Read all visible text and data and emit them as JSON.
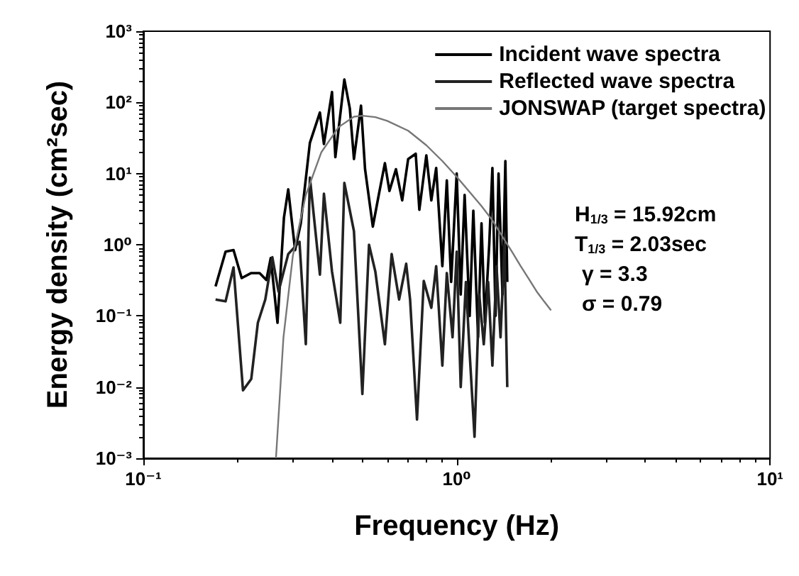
{
  "chart_data": {
    "type": "line",
    "xlabel": "Frequency (Hz)",
    "ylabel": "Energy density (cm²sec)",
    "log": "xy",
    "xlim": [
      0.1,
      10
    ],
    "ylim": [
      0.001,
      1000
    ],
    "xticks": [
      {
        "value": 0.1,
        "label": "10⁻¹"
      },
      {
        "value": 1,
        "label": "10⁰"
      },
      {
        "value": 10,
        "label": "10¹"
      }
    ],
    "yticks": [
      {
        "value": 0.001,
        "label": "10⁻³"
      },
      {
        "value": 0.01,
        "label": "10⁻²"
      },
      {
        "value": 0.1,
        "label": "10⁻¹"
      },
      {
        "value": 1,
        "label": "10⁰"
      },
      {
        "value": 10,
        "label": "10¹"
      },
      {
        "value": 100,
        "label": "10²"
      },
      {
        "value": 1000,
        "label": "10³"
      }
    ],
    "grid": false,
    "legend": "top right",
    "marker": "none",
    "line_style": "solid",
    "annotations": [
      "H$_{1/3}$ = 15.92cm",
      "T$_{1/3}$ = 2.03sec",
      "γ = 3.3",
      "σ = 0.79"
    ],
    "series": [
      {
        "name": "Incident wave spectra",
        "color": "#000000",
        "x": [
          0.17,
          0.183,
          0.194,
          0.206,
          0.221,
          0.235,
          0.247,
          0.255,
          0.268,
          0.281,
          0.29,
          0.305,
          0.318,
          0.34,
          0.366,
          0.377,
          0.4,
          0.41,
          0.438,
          0.456,
          0.47,
          0.495,
          0.51,
          0.54,
          0.563,
          0.59,
          0.61,
          0.64,
          0.67,
          0.7,
          0.74,
          0.76,
          0.8,
          0.83,
          0.86,
          0.9,
          0.93,
          0.96,
          1.0,
          1.03,
          1.06,
          1.1,
          1.13,
          1.17,
          1.2,
          1.23,
          1.27,
          1.3,
          1.33,
          1.36,
          1.4,
          1.43,
          1.45
        ],
        "values": [
          0.26,
          0.8,
          0.84,
          0.34,
          0.4,
          0.4,
          0.32,
          0.65,
          0.08,
          2.4,
          6,
          0.84,
          2,
          27,
          72,
          26,
          140,
          17,
          210,
          82,
          16,
          90,
          11.5,
          1.8,
          4.8,
          14,
          5.7,
          11.5,
          4.2,
          16,
          19,
          3.1,
          18,
          4.2,
          12,
          0.5,
          8,
          0.3,
          10,
          0.2,
          5,
          0.1,
          3,
          0.05,
          2,
          0.08,
          1,
          12,
          0.1,
          10,
          0.2,
          15,
          0.3
        ]
      },
      {
        "name": "Reflected wave spectra",
        "color": "#222222",
        "x": [
          0.17,
          0.183,
          0.194,
          0.208,
          0.221,
          0.232,
          0.245,
          0.258,
          0.27,
          0.29,
          0.315,
          0.33,
          0.34,
          0.366,
          0.377,
          0.4,
          0.425,
          0.438,
          0.47,
          0.5,
          0.525,
          0.55,
          0.59,
          0.62,
          0.655,
          0.69,
          0.71,
          0.747,
          0.785,
          0.83,
          0.86,
          0.9,
          0.93,
          0.97,
          1.0,
          1.03,
          1.07,
          1.1,
          1.14,
          1.18,
          1.22,
          1.26,
          1.3,
          1.34,
          1.38,
          1.42,
          1.45
        ],
        "values": [
          0.17,
          0.16,
          0.48,
          0.009,
          0.013,
          0.08,
          0.17,
          0.67,
          0.22,
          0.74,
          1.1,
          0.04,
          8.8,
          0.38,
          5.2,
          0.42,
          0.08,
          7.4,
          1.55,
          0.008,
          1,
          0.42,
          0.04,
          0.74,
          0.17,
          0.54,
          0.17,
          0.0035,
          0.31,
          0.13,
          0.5,
          0.02,
          0.4,
          0.05,
          0.8,
          0.01,
          0.3,
          0.03,
          0.002,
          0.2,
          0.04,
          0.3,
          0.02,
          0.5,
          0.05,
          1,
          0.01
        ]
      },
      {
        "name": "JONSWAP (target spectra)",
        "color": "#777777",
        "x": [
          0.265,
          0.28,
          0.3,
          0.33,
          0.37,
          0.42,
          0.47,
          0.5,
          0.55,
          0.6,
          0.7,
          0.8,
          0.9,
          1.0,
          1.1,
          1.2,
          1.3,
          1.4,
          1.5,
          1.6,
          1.7,
          1.8,
          1.9,
          2.0
        ],
        "values": [
          0.001,
          0.05,
          0.7,
          5,
          20,
          45,
          63,
          65,
          62,
          55,
          40,
          25,
          15,
          9,
          5.5,
          3.5,
          2.2,
          1.3,
          0.8,
          0.5,
          0.33,
          0.22,
          0.16,
          0.12
        ]
      }
    ]
  }
}
